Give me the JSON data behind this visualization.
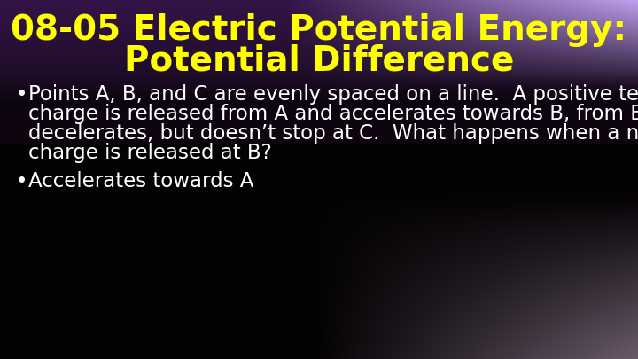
{
  "title_line1": "08-05 Electric Potential Energy:",
  "title_line2": "Potential Difference",
  "title_color": "#FFFF00",
  "title_fontsize": 28,
  "title_fontweight": "bold",
  "bullet1_line1": "Points A, B, and C are evenly spaced on a line.  A positive test",
  "bullet1_line2": "charge is released from A and accelerates towards B, from B it",
  "bullet1_line3": "decelerates, but doesn’t stop at C.  What happens when a negative",
  "bullet1_line4": "charge is released at B?",
  "bullet2": "Accelerates towards A",
  "bullet_color": "#FFFFFF",
  "bullet_fontsize": 16.5,
  "fig_width": 7.2,
  "fig_height": 4.05,
  "dpi": 100
}
